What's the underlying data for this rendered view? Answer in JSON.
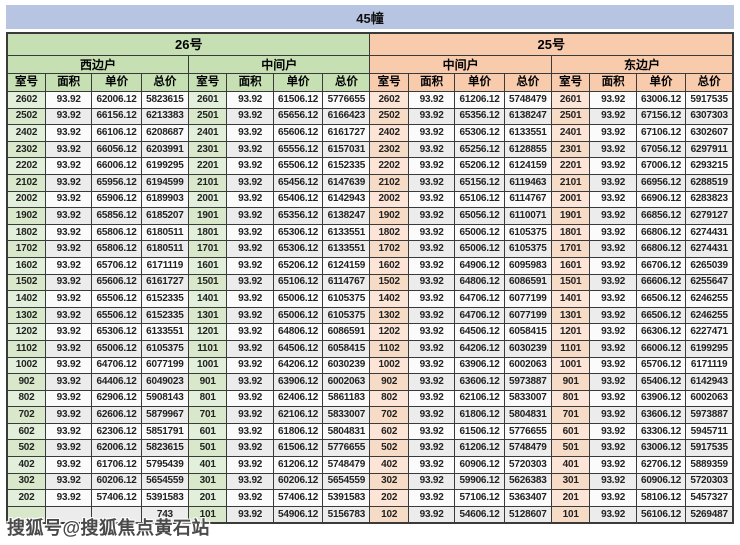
{
  "title": "45幢",
  "watermark": {
    "text": "搜狐号@搜狐焦点黄石站"
  },
  "colors": {
    "title_bar_bg": "#b7c5e3",
    "group_26_bg": "#c6e0b4",
    "group_25_bg": "#f8cbad",
    "room_col_26_bg": "#e2efda",
    "room_col_25_bg": "#fce4d6",
    "row_alt_bg": "#ececec",
    "border": "#3a3a3a"
  },
  "table": {
    "groups": [
      {
        "label": "26号",
        "sections": [
          {
            "label": "西边户"
          },
          {
            "label": "中间户"
          }
        ]
      },
      {
        "label": "25号",
        "sections": [
          {
            "label": "中间户"
          },
          {
            "label": "东边户"
          }
        ]
      }
    ],
    "column_headers": [
      "室号",
      "面积",
      "单价",
      "总价"
    ],
    "rows": [
      [
        "2602",
        "93.92",
        "62006.12",
        "5823615",
        "2601",
        "93.92",
        "61506.12",
        "5776655",
        "2602",
        "93.92",
        "61206.12",
        "5748479",
        "2601",
        "93.92",
        "63006.12",
        "5917535"
      ],
      [
        "2502",
        "93.92",
        "66156.12",
        "6213383",
        "2501",
        "93.92",
        "65656.12",
        "6166423",
        "2502",
        "93.92",
        "65356.12",
        "6138247",
        "2501",
        "93.92",
        "67156.12",
        "6307303"
      ],
      [
        "2402",
        "93.92",
        "66106.12",
        "6208687",
        "2401",
        "93.92",
        "65606.12",
        "6161727",
        "2402",
        "93.92",
        "65306.12",
        "6133551",
        "2401",
        "93.92",
        "67106.12",
        "6302607"
      ],
      [
        "2302",
        "93.92",
        "66056.12",
        "6203991",
        "2301",
        "93.92",
        "65556.12",
        "6157031",
        "2302",
        "93.92",
        "65256.12",
        "6128855",
        "2301",
        "93.92",
        "67056.12",
        "6297911"
      ],
      [
        "2202",
        "93.92",
        "66006.12",
        "6199295",
        "2201",
        "93.92",
        "65506.12",
        "6152335",
        "2202",
        "93.92",
        "65206.12",
        "6124159",
        "2201",
        "93.92",
        "67006.12",
        "6293215"
      ],
      [
        "2102",
        "93.92",
        "65956.12",
        "6194599",
        "2101",
        "93.92",
        "65456.12",
        "6147639",
        "2102",
        "93.92",
        "65156.12",
        "6119463",
        "2101",
        "93.92",
        "66956.12",
        "6288519"
      ],
      [
        "2002",
        "93.92",
        "65906.12",
        "6189903",
        "2001",
        "93.92",
        "65406.12",
        "6142943",
        "2002",
        "93.92",
        "65106.12",
        "6114767",
        "2001",
        "93.92",
        "66906.12",
        "6283823"
      ],
      [
        "1902",
        "93.92",
        "65856.12",
        "6185207",
        "1901",
        "93.92",
        "65356.12",
        "6138247",
        "1902",
        "93.92",
        "65056.12",
        "6110071",
        "1901",
        "93.92",
        "66856.12",
        "6279127"
      ],
      [
        "1802",
        "93.92",
        "65806.12",
        "6180511",
        "1801",
        "93.92",
        "65306.12",
        "6133551",
        "1802",
        "93.92",
        "65006.12",
        "6105375",
        "1801",
        "93.92",
        "66806.12",
        "6274431"
      ],
      [
        "1702",
        "93.92",
        "65806.12",
        "6180511",
        "1701",
        "93.92",
        "65306.12",
        "6133551",
        "1702",
        "93.92",
        "65006.12",
        "6105375",
        "1701",
        "93.92",
        "66806.12",
        "6274431"
      ],
      [
        "1602",
        "93.92",
        "65706.12",
        "6171119",
        "1601",
        "93.92",
        "65206.12",
        "6124159",
        "1602",
        "93.92",
        "64906.12",
        "6095983",
        "1601",
        "93.92",
        "66706.12",
        "6265039"
      ],
      [
        "1502",
        "93.92",
        "65606.12",
        "6161727",
        "1501",
        "93.92",
        "65106.12",
        "6114767",
        "1502",
        "93.92",
        "64806.12",
        "6086591",
        "1501",
        "93.92",
        "66606.12",
        "6255647"
      ],
      [
        "1402",
        "93.92",
        "65506.12",
        "6152335",
        "1401",
        "93.92",
        "65006.12",
        "6105375",
        "1402",
        "93.92",
        "64706.12",
        "6077199",
        "1401",
        "93.92",
        "66506.12",
        "6246255"
      ],
      [
        "1302",
        "93.92",
        "65506.12",
        "6152335",
        "1301",
        "93.92",
        "65006.12",
        "6105375",
        "1302",
        "93.92",
        "64706.12",
        "6077199",
        "1301",
        "93.92",
        "66506.12",
        "6246255"
      ],
      [
        "1202",
        "93.92",
        "65306.12",
        "6133551",
        "1201",
        "93.92",
        "64806.12",
        "6086591",
        "1202",
        "93.92",
        "64506.12",
        "6058415",
        "1201",
        "93.92",
        "66306.12",
        "6227471"
      ],
      [
        "1102",
        "93.92",
        "65006.12",
        "6105375",
        "1101",
        "93.92",
        "64506.12",
        "6058415",
        "1102",
        "93.92",
        "64206.12",
        "6030239",
        "1101",
        "93.92",
        "66006.12",
        "6199295"
      ],
      [
        "1002",
        "93.92",
        "64706.12",
        "6077199",
        "1001",
        "93.92",
        "64206.12",
        "6030239",
        "1002",
        "93.92",
        "63906.12",
        "6002063",
        "1001",
        "93.92",
        "65706.12",
        "6171119"
      ],
      [
        "902",
        "93.92",
        "64406.12",
        "6049023",
        "901",
        "93.92",
        "63906.12",
        "6002063",
        "902",
        "93.92",
        "63606.12",
        "5973887",
        "901",
        "93.92",
        "65406.12",
        "6142943"
      ],
      [
        "802",
        "93.92",
        "62906.12",
        "5908143",
        "801",
        "93.92",
        "62406.12",
        "5861183",
        "802",
        "93.92",
        "62106.12",
        "5833007",
        "801",
        "93.92",
        "63906.12",
        "6002063"
      ],
      [
        "702",
        "93.92",
        "62606.12",
        "5879967",
        "701",
        "93.92",
        "62106.12",
        "5833007",
        "702",
        "93.92",
        "61806.12",
        "5804831",
        "701",
        "93.92",
        "63606.12",
        "5973887"
      ],
      [
        "602",
        "93.92",
        "62306.12",
        "5851791",
        "601",
        "93.92",
        "61806.12",
        "5804831",
        "602",
        "93.92",
        "61506.12",
        "5776655",
        "601",
        "93.92",
        "63306.12",
        "5945711"
      ],
      [
        "502",
        "93.92",
        "62006.12",
        "5823615",
        "501",
        "93.92",
        "61506.12",
        "5776655",
        "502",
        "93.92",
        "61206.12",
        "5748479",
        "501",
        "93.92",
        "63006.12",
        "5917535"
      ],
      [
        "402",
        "93.92",
        "61706.12",
        "5795439",
        "401",
        "93.92",
        "61206.12",
        "5748479",
        "402",
        "93.92",
        "60906.12",
        "5720303",
        "401",
        "93.92",
        "62706.12",
        "5889359"
      ],
      [
        "302",
        "93.92",
        "60206.12",
        "5654559",
        "301",
        "93.92",
        "60206.12",
        "5654559",
        "302",
        "93.92",
        "59906.12",
        "5626383",
        "301",
        "93.92",
        "60906.12",
        "5720303"
      ],
      [
        "202",
        "93.92",
        "57406.12",
        "5391583",
        "201",
        "93.92",
        "57406.12",
        "5391583",
        "202",
        "93.92",
        "57106.12",
        "5363407",
        "201",
        "93.92",
        "58106.12",
        "5457327"
      ],
      [
        "",
        "",
        "",
        "743",
        "101",
        "93.92",
        "54906.12",
        "5156783",
        "102",
        "93.92",
        "54606.12",
        "5128607",
        "101",
        "93.92",
        "56106.12",
        "5269487"
      ]
    ]
  }
}
